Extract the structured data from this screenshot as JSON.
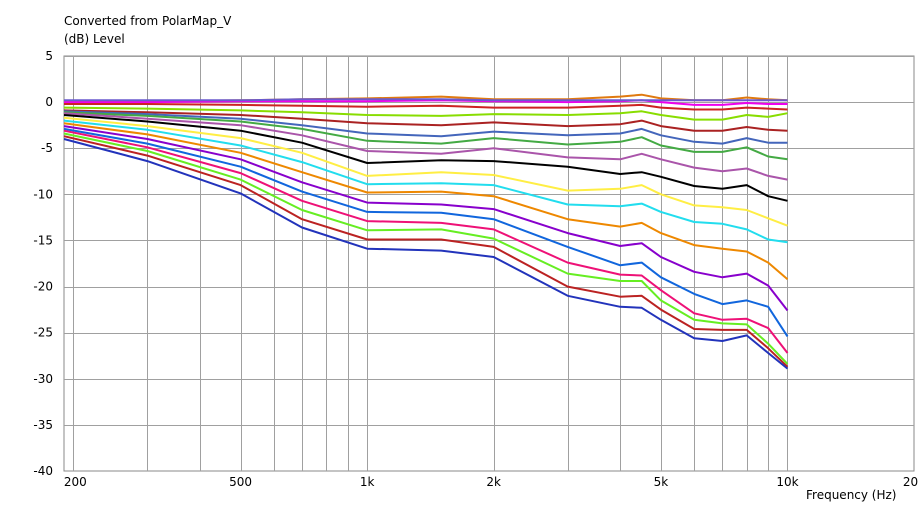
{
  "chart_data": {
    "type": "line",
    "title": "Converted from PolarMap_V",
    "ylabel": "(dB)  Level",
    "xlabel": "Frequency  (Hz)",
    "xscale": "log",
    "xlim": [
      190,
      20000
    ],
    "ylim": [
      -40,
      5
    ],
    "yticks": [
      5,
      0,
      -5,
      -10,
      -15,
      -20,
      -25,
      -30,
      -35,
      -40
    ],
    "xticks": [
      {
        "value": 200,
        "label": "200"
      },
      {
        "value": 500,
        "label": "500"
      },
      {
        "value": 1000,
        "label": "1k"
      },
      {
        "value": 2000,
        "label": "2k"
      },
      {
        "value": 5000,
        "label": "5k"
      },
      {
        "value": 10000,
        "label": "10k"
      },
      {
        "value": 20000,
        "label": "20k"
      }
    ],
    "grid": true,
    "legend": "none",
    "x": [
      190,
      300,
      500,
      700,
      1000,
      1500,
      2000,
      3000,
      4000,
      4500,
      5000,
      6000,
      7000,
      8000,
      9000,
      10000
    ],
    "series": [
      {
        "color": "#e07a10",
        "values": [
          0.1,
          0.1,
          0.2,
          0.3,
          0.4,
          0.6,
          0.3,
          0.3,
          0.6,
          0.8,
          0.4,
          0.2,
          0.2,
          0.5,
          0.3,
          0.2
        ]
      },
      {
        "color": "#ee00ee",
        "values": [
          0.0,
          0.0,
          0.1,
          0.1,
          0.1,
          0.2,
          0.1,
          0.0,
          0.1,
          0.2,
          0.0,
          -0.3,
          -0.3,
          -0.1,
          -0.2,
          -0.2
        ]
      },
      {
        "color": "#6a5acd",
        "values": [
          0.2,
          0.2,
          0.2,
          0.3,
          0.3,
          0.3,
          0.2,
          0.2,
          0.2,
          0.2,
          0.2,
          0.2,
          0.2,
          0.2,
          0.2,
          0.2
        ]
      },
      {
        "color": "#cc2222",
        "values": [
          -0.2,
          -0.2,
          -0.3,
          -0.4,
          -0.5,
          -0.4,
          -0.6,
          -0.6,
          -0.4,
          -0.3,
          -0.6,
          -0.8,
          -0.8,
          -0.6,
          -0.7,
          -0.8
        ]
      },
      {
        "color": "#88dd00",
        "values": [
          -0.6,
          -0.7,
          -0.9,
          -1.1,
          -1.4,
          -1.5,
          -1.3,
          -1.4,
          -1.2,
          -1.0,
          -1.4,
          -1.9,
          -1.9,
          -1.4,
          -1.6,
          -1.2
        ]
      },
      {
        "color": "#aa2222",
        "values": [
          -0.9,
          -1.1,
          -1.4,
          -1.8,
          -2.3,
          -2.5,
          -2.2,
          -2.6,
          -2.4,
          -2.0,
          -2.6,
          -3.1,
          -3.1,
          -2.7,
          -3.0,
          -3.1
        ]
      },
      {
        "color": "#4466bb",
        "values": [
          -1.0,
          -1.3,
          -1.8,
          -2.5,
          -3.4,
          -3.7,
          -3.2,
          -3.6,
          -3.4,
          -2.9,
          -3.6,
          -4.3,
          -4.5,
          -3.9,
          -4.4,
          -4.4
        ]
      },
      {
        "color": "#44aa44",
        "values": [
          -1.1,
          -1.5,
          -2.1,
          -2.9,
          -4.2,
          -4.5,
          -3.9,
          -4.6,
          -4.3,
          -3.8,
          -4.7,
          -5.4,
          -5.4,
          -4.9,
          -5.9,
          -6.2
        ]
      },
      {
        "color": "#aa55aa",
        "values": [
          -1.2,
          -1.8,
          -2.5,
          -3.6,
          -5.3,
          -5.6,
          -5.0,
          -6.0,
          -6.2,
          -5.6,
          -6.2,
          -7.1,
          -7.5,
          -7.2,
          -8.0,
          -8.4
        ]
      },
      {
        "color": "#000000",
        "values": [
          -1.4,
          -2.1,
          -3.1,
          -4.4,
          -6.6,
          -6.3,
          -6.4,
          -7.0,
          -7.8,
          -7.6,
          -8.1,
          -9.1,
          -9.4,
          -9.0,
          -10.2,
          -10.7
        ]
      },
      {
        "color": "#ffee44",
        "values": [
          -1.7,
          -2.6,
          -3.9,
          -5.5,
          -8.0,
          -7.6,
          -7.9,
          -9.6,
          -9.4,
          -9.0,
          -10.0,
          -11.2,
          -11.4,
          -11.7,
          -12.6,
          -13.4
        ]
      },
      {
        "color": "#22ddee",
        "values": [
          -2.0,
          -3.0,
          -4.7,
          -6.5,
          -8.9,
          -8.8,
          -9.0,
          -11.1,
          -11.3,
          -11.0,
          -11.9,
          -13.0,
          -13.2,
          -13.8,
          -14.9,
          -15.2
        ]
      },
      {
        "color": "#ee8800",
        "values": [
          -2.3,
          -3.5,
          -5.5,
          -7.6,
          -9.8,
          -9.7,
          -10.2,
          -12.7,
          -13.5,
          -13.1,
          -14.2,
          -15.5,
          -15.9,
          -16.2,
          -17.4,
          -19.2
        ]
      },
      {
        "color": "#8800cc",
        "values": [
          -2.6,
          -4.0,
          -6.2,
          -8.7,
          -10.9,
          -11.1,
          -11.6,
          -14.2,
          -15.6,
          -15.3,
          -16.8,
          -18.4,
          -19.0,
          -18.6,
          -19.9,
          -22.6
        ]
      },
      {
        "color": "#1166dd",
        "values": [
          -2.9,
          -4.5,
          -7.0,
          -9.7,
          -11.9,
          -12.0,
          -12.7,
          -15.7,
          -17.7,
          -17.4,
          -19.0,
          -20.8,
          -21.9,
          -21.5,
          -22.2,
          -25.4
        ]
      },
      {
        "color": "#ee1177",
        "values": [
          -3.1,
          -4.9,
          -7.7,
          -10.7,
          -12.9,
          -13.1,
          -13.8,
          -17.4,
          -18.7,
          -18.8,
          -20.4,
          -22.9,
          -23.6,
          -23.5,
          -24.5,
          -27.2
        ]
      },
      {
        "color": "#66ee22",
        "values": [
          -3.4,
          -5.3,
          -8.4,
          -11.7,
          -13.9,
          -13.8,
          -14.8,
          -18.6,
          -19.4,
          -19.4,
          -21.5,
          -23.6,
          -24.0,
          -24.1,
          -26.2,
          -28.4
        ]
      },
      {
        "color": "#bb2222",
        "values": [
          -3.7,
          -5.8,
          -9.0,
          -12.7,
          -14.9,
          -14.9,
          -15.7,
          -20.0,
          -21.1,
          -21.0,
          -22.5,
          -24.6,
          -24.7,
          -24.7,
          -26.7,
          -28.7
        ]
      },
      {
        "color": "#2233bb",
        "values": [
          -4.0,
          -6.4,
          -9.9,
          -13.6,
          -15.9,
          -16.1,
          -16.8,
          -21.0,
          -22.2,
          -22.3,
          -23.6,
          -25.6,
          -25.9,
          -25.3,
          -27.2,
          -28.9
        ]
      }
    ]
  }
}
